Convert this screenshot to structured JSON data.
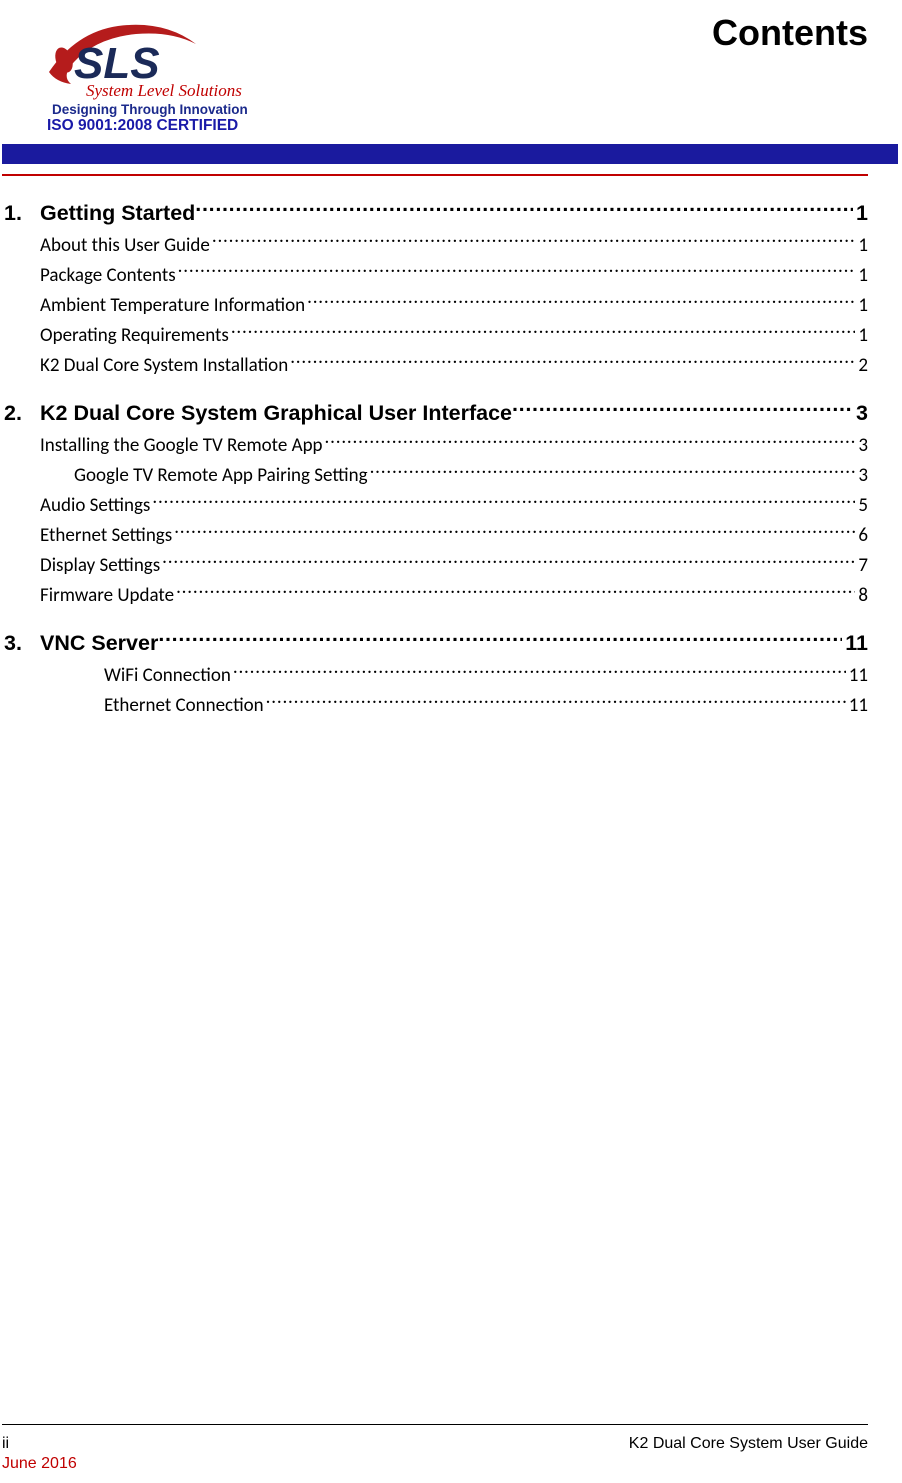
{
  "header": {
    "page_title": "Contents",
    "logo": {
      "company_short": "SLS",
      "tagline1": "System Level Solutions",
      "tagline2": "Designing Through Innovation",
      "cert": "ISO 9001:2008 CERTIFIED",
      "colors": {
        "swoosh": "#b51c1c",
        "letters_dark": "#1b2a58",
        "tagline1_color": "#c00000",
        "tagline2_color": "#1b2a8c",
        "cert_color": "#1a1aa8"
      }
    }
  },
  "rules": {
    "blue_band": "#1a1a9e",
    "red_line": "#c00000"
  },
  "toc": {
    "sections": [
      {
        "num": "1.",
        "title": "Getting Started",
        "page": "1",
        "subs": [
          {
            "title": "About this User Guide",
            "page": "1",
            "indent": 1
          },
          {
            "title": "Package Contents",
            "page": "1",
            "indent": 1
          },
          {
            "title": "Ambient Temperature Information",
            "page": "1",
            "indent": 1
          },
          {
            "title": "Operating Requirements",
            "page": "1",
            "indent": 1
          },
          {
            "title": "K2 Dual Core System Installation",
            "page": "2",
            "indent": 1
          }
        ]
      },
      {
        "num": "2.",
        "title": "K2 Dual Core System Graphical User Interface",
        "page": "3",
        "subs": [
          {
            "title": "Installing the Google TV Remote App",
            "page": "3",
            "indent": 1
          },
          {
            "title": "Google TV Remote App Pairing Setting",
            "page": "3",
            "indent": 2
          },
          {
            "title": "Audio Settings",
            "page": "5",
            "indent": 1
          },
          {
            "title": "Ethernet Settings",
            "page": "6",
            "indent": 1
          },
          {
            "title": "Display Settings",
            "page": "7",
            "indent": 1
          },
          {
            "title": "Firmware Update",
            "page": "8",
            "indent": 1
          }
        ]
      },
      {
        "num": "3.",
        "title": "VNC Server",
        "page": "11",
        "subs": [
          {
            "title": "WiFi Connection",
            "page": "11",
            "indent": 3
          },
          {
            "title": "Ethernet Connection",
            "page": "11",
            "indent": 3
          }
        ]
      }
    ]
  },
  "footer": {
    "page_num": "ii",
    "date": "June 2016",
    "doc_title": "K2 Dual Core System User Guide"
  }
}
